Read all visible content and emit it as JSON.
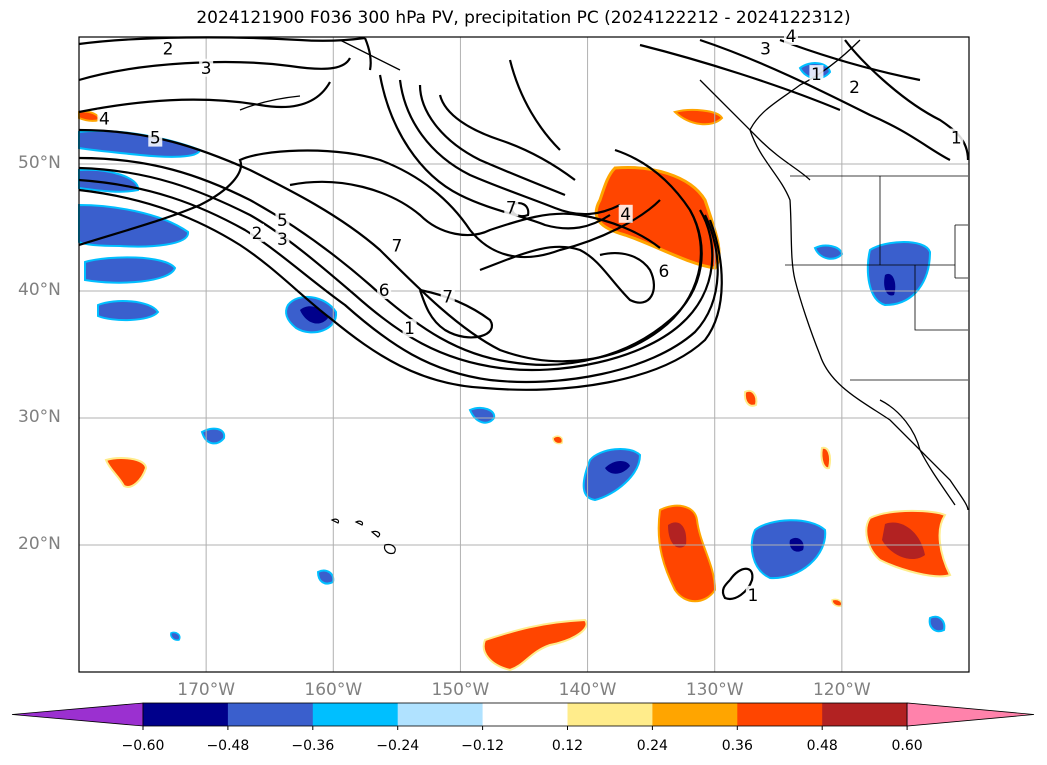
{
  "title": "2024121900 F036 300 hPa PV, precipitation PC (2024122212 - 2024122312)",
  "lat_labels": [
    {
      "text": "50°N",
      "lat": 50
    },
    {
      "text": "40°N",
      "lat": 40
    },
    {
      "text": "30°N",
      "lat": 30
    },
    {
      "text": "20°N",
      "lat": 20
    }
  ],
  "lon_labels": [
    {
      "text": "170°W",
      "lon": -170
    },
    {
      "text": "160°W",
      "lon": -160
    },
    {
      "text": "150°W",
      "lon": -150
    },
    {
      "text": "140°W",
      "lon": -140
    },
    {
      "text": "130°W",
      "lon": -130
    },
    {
      "text": "120°W",
      "lon": -120
    }
  ],
  "map_extent": {
    "lon_min": -180,
    "lon_max": -110,
    "lat_min": 10,
    "lat_max": 60
  },
  "colorbar": {
    "labels": [
      "−0.60",
      "−0.48",
      "−0.36",
      "−0.24",
      "−0.12",
      "0.12",
      "0.24",
      "0.36",
      "0.48",
      "0.60"
    ],
    "colors": [
      "#9b30d0",
      "#00008b",
      "#3a5fcd",
      "#00bfff",
      "#b0e2ff",
      "#ffffff",
      "#ffec8b",
      "#ffa500",
      "#ff4500",
      "#b22222",
      "#ff82ab"
    ]
  },
  "contour_labels": [
    {
      "text": "2",
      "lon": -173,
      "lat": 59
    },
    {
      "text": "3",
      "lon": -170,
      "lat": 57.5
    },
    {
      "text": "4",
      "lon": -178,
      "lat": 53.5
    },
    {
      "text": "5",
      "lon": -174,
      "lat": 52
    },
    {
      "text": "5",
      "lon": -164,
      "lat": 45.5
    },
    {
      "text": "2",
      "lon": -166,
      "lat": 44.5
    },
    {
      "text": "3",
      "lon": -164,
      "lat": 44
    },
    {
      "text": "7",
      "lon": -155,
      "lat": 43.5
    },
    {
      "text": "6",
      "lon": -156,
      "lat": 40
    },
    {
      "text": "7",
      "lon": -151,
      "lat": 39.5
    },
    {
      "text": "1",
      "lon": -154,
      "lat": 37
    },
    {
      "text": "7",
      "lon": -146,
      "lat": 46.5
    },
    {
      "text": "4",
      "lon": -137,
      "lat": 46
    },
    {
      "text": "6",
      "lon": -134,
      "lat": 41.5
    },
    {
      "text": "3",
      "lon": -126,
      "lat": 59
    },
    {
      "text": "4",
      "lon": -124,
      "lat": 60
    },
    {
      "text": "1",
      "lon": -122,
      "lat": 57
    },
    {
      "text": "2",
      "lon": -119,
      "lat": 56
    },
    {
      "text": "1",
      "lon": -111,
      "lat": 52
    },
    {
      "text": "1",
      "lon": -127,
      "lat": 16
    }
  ]
}
